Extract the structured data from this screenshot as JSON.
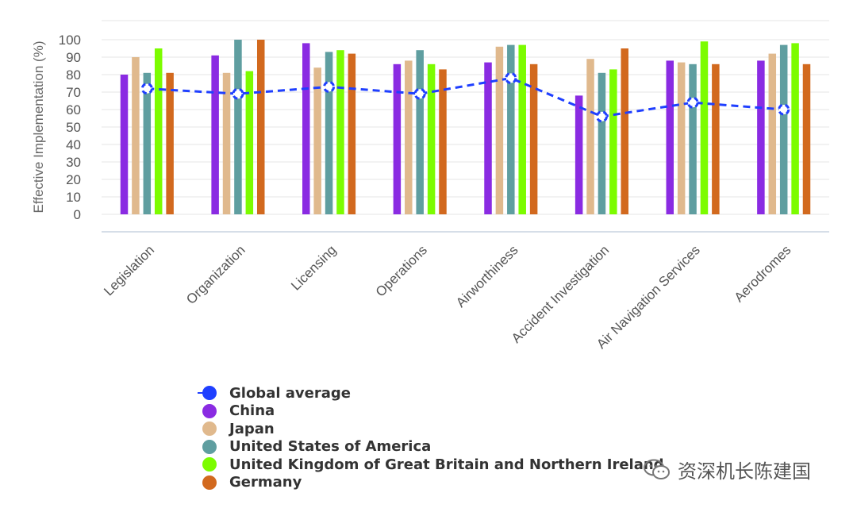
{
  "chart_data": {
    "type": "bar",
    "ylabel": "Effective Implementation (%)",
    "ylim": [
      0,
      100
    ],
    "yticks": [
      0,
      10,
      20,
      30,
      40,
      50,
      60,
      70,
      80,
      90,
      100
    ],
    "grid": true,
    "legend_position": "bottom-left",
    "categories": [
      "Legislation",
      "Organization",
      "Licensing",
      "Operations",
      "Airworthiness",
      "Accident Investigation",
      "Air Navigation Services",
      "Aerodromes"
    ],
    "series": [
      {
        "name": "China",
        "type": "bar",
        "color": "#8a2be2",
        "values": [
          80,
          91,
          98,
          86,
          87,
          68,
          88,
          88
        ]
      },
      {
        "name": "Japan",
        "type": "bar",
        "color": "#e0b98d",
        "values": [
          90,
          81,
          84,
          88,
          96,
          89,
          87,
          92
        ]
      },
      {
        "name": "United States of America",
        "type": "bar",
        "color": "#5f9ea0",
        "values": [
          81,
          100,
          93,
          94,
          97,
          81,
          86,
          97
        ]
      },
      {
        "name": "United Kingdom of Great Britain and Northern Ireland",
        "type": "bar",
        "color": "#7cfc00",
        "values": [
          95,
          82,
          94,
          86,
          97,
          83,
          99,
          98
        ]
      },
      {
        "name": "Germany",
        "type": "bar",
        "color": "#d2691e",
        "values": [
          81,
          100,
          92,
          83,
          86,
          95,
          86,
          86
        ]
      },
      {
        "name": "Global average",
        "type": "line",
        "color": "#1f3fff",
        "line_style": "dashed",
        "values": [
          72,
          69,
          73,
          69,
          78,
          56,
          64,
          60
        ]
      }
    ]
  },
  "legend": {
    "items": [
      {
        "label": "Global average",
        "color": "#1f3fff",
        "line": true
      },
      {
        "label": "China",
        "color": "#8a2be2"
      },
      {
        "label": "Japan",
        "color": "#e0b98d"
      },
      {
        "label": "United States of America",
        "color": "#5f9ea0"
      },
      {
        "label": "United Kingdom of Great Britain and Northern Ireland",
        "color": "#7cfc00"
      },
      {
        "label": "Germany",
        "color": "#d2691e"
      }
    ]
  },
  "watermark": {
    "text": "资深机长陈建国"
  }
}
